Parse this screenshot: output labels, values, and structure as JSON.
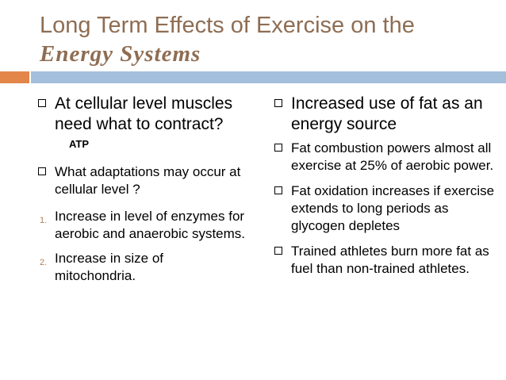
{
  "slide": {
    "title_line1": "Long Term Effects of Exercise on the",
    "title_line2": "Energy Systems"
  },
  "left": {
    "b1_text": "At cellular level muscles need what to contract?",
    "b1_badge": "ATP",
    "b2_text": "What adaptations may occur at cellular level ?",
    "n1_marker": "1.",
    "n1_text": "Increase in level of enzymes for aerobic and anaerobic systems.",
    "n2_marker": "2.",
    "n2_text": "Increase in size of mitochondria."
  },
  "right": {
    "b1_text": "Increased use of fat as an energy source",
    "b2_text": "Fat combustion powers almost all exercise at 25% of aerobic power.",
    "b3_text": "Fat oxidation increases if exercise extends to long periods as glycogen depletes",
    "b4_text": "Trained athletes burn more fat as fuel than non-trained athletes."
  },
  "colors": {
    "title": "#8e6d53",
    "accent_bar": "#e2864a",
    "main_bar": "#a3bfdc"
  }
}
